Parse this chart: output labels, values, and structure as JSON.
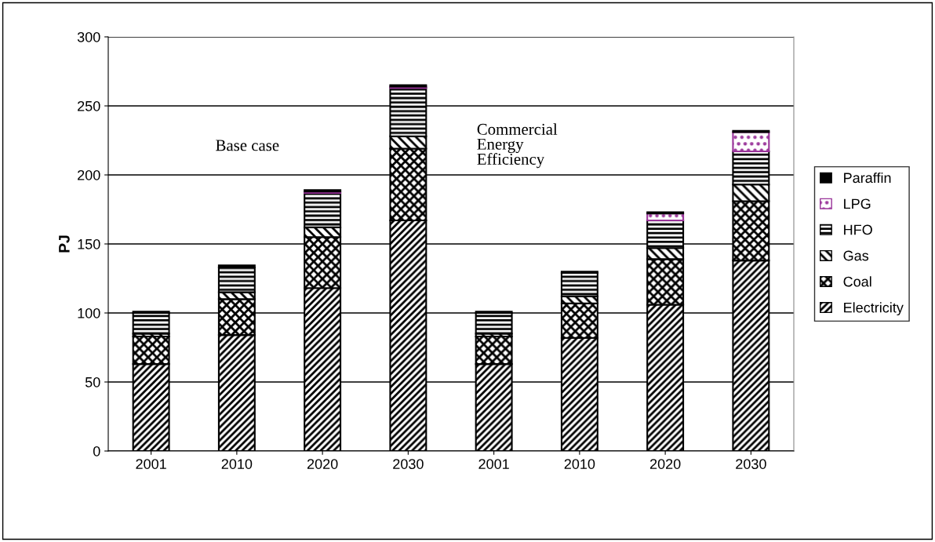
{
  "chart_data": {
    "type": "bar",
    "stacked": true,
    "ylabel": "PJ",
    "categories": [
      "2001",
      "2010",
      "2020",
      "2030",
      "2001",
      "2010",
      "2020",
      "2030"
    ],
    "series": [
      {
        "name": "Electricity",
        "color": "#000000",
        "values": [
          63,
          84,
          118,
          167,
          63,
          82,
          106,
          138
        ]
      },
      {
        "name": "Coal",
        "color": "#000000",
        "values": [
          20,
          26,
          37,
          52,
          20,
          25,
          33,
          43
        ]
      },
      {
        "name": "Gas",
        "color": "#000000",
        "values": [
          2,
          5,
          7,
          9,
          2,
          5,
          8,
          12
        ]
      },
      {
        "name": "HFO",
        "color": "#000000",
        "values": [
          15,
          18,
          25,
          35,
          15,
          17,
          20,
          24
        ]
      },
      {
        "name": "LPG",
        "color": "#993399",
        "values": [
          null,
          null,
          1,
          1,
          null,
          null,
          5,
          14
        ]
      },
      {
        "name": "Paraffin",
        "color": "#000000",
        "values": [
          1,
          1.5,
          1,
          1,
          1,
          1,
          1,
          1
        ]
      }
    ],
    "ylim": [
      0,
      300
    ],
    "yticks": [
      0,
      50,
      100,
      150,
      200,
      250,
      300
    ],
    "grid": "y",
    "legend": "right",
    "annotations": [
      "Base case",
      "Commercial Energy Efficiency"
    ]
  }
}
